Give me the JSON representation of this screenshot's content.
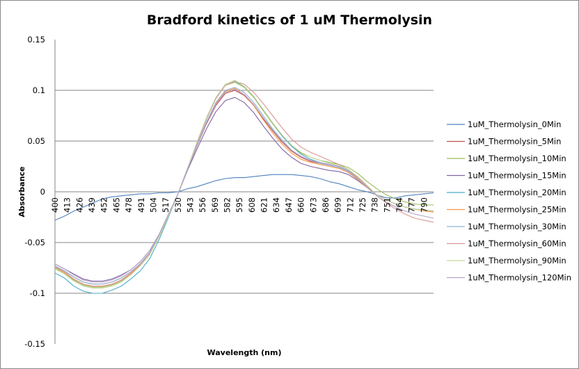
{
  "chart_data": {
    "type": "line",
    "title": "Bradford kinetics of 1 uM Thermolysin",
    "xlabel": "Wavelength (nm)",
    "ylabel": "Absorbance",
    "ylim": [
      -0.15,
      0.15
    ],
    "yticks": [
      "0.15",
      "0.1",
      "0.05",
      "0",
      "-0.05",
      "-0.1",
      "-0.15"
    ],
    "ytick_values": [
      0.15,
      0.1,
      0.05,
      0,
      -0.05,
      -0.1,
      -0.15
    ],
    "xlim": [
      400,
      800
    ],
    "xticks": [
      "400",
      "413",
      "426",
      "439",
      "452",
      "465",
      "478",
      "491",
      "504",
      "517",
      "530",
      "543",
      "556",
      "569",
      "582",
      "595",
      "608",
      "621",
      "634",
      "647",
      "660",
      "673",
      "686",
      "699",
      "712",
      "725",
      "738",
      "751",
      "764",
      "777",
      "790"
    ],
    "grid": true,
    "legend": "right",
    "x": [
      400,
      410,
      420,
      430,
      440,
      450,
      460,
      470,
      480,
      490,
      500,
      510,
      520,
      530,
      540,
      550,
      560,
      570,
      580,
      590,
      600,
      610,
      620,
      630,
      640,
      650,
      660,
      670,
      680,
      690,
      700,
      710,
      720,
      730,
      740,
      750,
      760,
      770,
      780,
      790,
      800
    ],
    "series": [
      {
        "name": "1uM_Thermolysin_0Min",
        "color": "#4F81BD",
        "values": [
          -0.028,
          -0.024,
          -0.019,
          -0.015,
          -0.011,
          -0.007,
          -0.005,
          -0.004,
          -0.003,
          -0.002,
          -0.002,
          -0.001,
          -0.001,
          0.0,
          0.003,
          0.005,
          0.008,
          0.011,
          0.013,
          0.014,
          0.014,
          0.015,
          0.016,
          0.017,
          0.017,
          0.017,
          0.016,
          0.015,
          0.013,
          0.01,
          0.008,
          0.005,
          0.002,
          0.0,
          -0.003,
          -0.006,
          -0.006,
          -0.004,
          -0.003,
          -0.002,
          -0.001
        ]
      },
      {
        "name": "1uM_Thermolysin_5Min",
        "color": "#C0504D",
        "values": [
          -0.073,
          -0.078,
          -0.084,
          -0.089,
          -0.091,
          -0.091,
          -0.089,
          -0.085,
          -0.079,
          -0.071,
          -0.06,
          -0.043,
          -0.023,
          -0.002,
          0.022,
          0.045,
          0.067,
          0.085,
          0.097,
          0.1,
          0.095,
          0.085,
          0.072,
          0.06,
          0.049,
          0.04,
          0.034,
          0.03,
          0.028,
          0.026,
          0.024,
          0.02,
          0.013,
          0.005,
          -0.003,
          -0.008,
          -0.012,
          -0.015,
          -0.017,
          -0.018,
          -0.019
        ]
      },
      {
        "name": "1uM_Thermolysin_10Min",
        "color": "#9BBB59",
        "values": [
          -0.075,
          -0.08,
          -0.087,
          -0.092,
          -0.094,
          -0.094,
          -0.092,
          -0.088,
          -0.081,
          -0.073,
          -0.062,
          -0.044,
          -0.024,
          -0.002,
          0.023,
          0.048,
          0.072,
          0.092,
          0.105,
          0.108,
          0.103,
          0.093,
          0.08,
          0.067,
          0.055,
          0.045,
          0.038,
          0.034,
          0.031,
          0.029,
          0.027,
          0.024,
          0.018,
          0.01,
          0.003,
          -0.003,
          -0.007,
          -0.01,
          -0.012,
          -0.013,
          -0.013
        ]
      },
      {
        "name": "1uM_Thermolysin_15Min",
        "color": "#8064A2",
        "values": [
          -0.071,
          -0.076,
          -0.081,
          -0.086,
          -0.088,
          -0.088,
          -0.086,
          -0.082,
          -0.077,
          -0.069,
          -0.058,
          -0.042,
          -0.022,
          -0.002,
          0.021,
          0.042,
          0.062,
          0.079,
          0.09,
          0.093,
          0.088,
          0.078,
          0.065,
          0.053,
          0.042,
          0.034,
          0.028,
          0.025,
          0.023,
          0.021,
          0.02,
          0.017,
          0.011,
          0.004,
          -0.003,
          -0.008,
          -0.012,
          -0.015,
          -0.017,
          -0.018,
          -0.019
        ]
      },
      {
        "name": "1uM_Thermolysin_20Min",
        "color": "#4BACC6",
        "values": [
          -0.08,
          -0.085,
          -0.093,
          -0.098,
          -0.1,
          -0.1,
          -0.097,
          -0.093,
          -0.086,
          -0.078,
          -0.066,
          -0.047,
          -0.025,
          -0.002,
          0.023,
          0.048,
          0.072,
          0.092,
          0.105,
          0.109,
          0.104,
          0.094,
          0.081,
          0.068,
          0.055,
          0.045,
          0.037,
          0.032,
          0.029,
          0.027,
          0.025,
          0.021,
          0.014,
          0.005,
          -0.003,
          -0.008,
          -0.012,
          -0.015,
          -0.017,
          -0.018,
          -0.019
        ]
      },
      {
        "name": "1uM_Thermolysin_25Min",
        "color": "#F79646",
        "values": [
          -0.074,
          -0.08,
          -0.086,
          -0.091,
          -0.093,
          -0.093,
          -0.091,
          -0.087,
          -0.081,
          -0.072,
          -0.061,
          -0.044,
          -0.023,
          -0.002,
          0.022,
          0.046,
          0.068,
          0.087,
          0.099,
          0.102,
          0.096,
          0.085,
          0.071,
          0.058,
          0.047,
          0.038,
          0.032,
          0.029,
          0.027,
          0.025,
          0.023,
          0.019,
          0.012,
          0.004,
          -0.003,
          -0.008,
          -0.012,
          -0.015,
          -0.017,
          -0.019,
          -0.02
        ]
      },
      {
        "name": "1uM_Thermolysin_30Min",
        "color": "#95B3D7",
        "values": [
          -0.073,
          -0.078,
          -0.084,
          -0.089,
          -0.091,
          -0.091,
          -0.089,
          -0.085,
          -0.079,
          -0.071,
          -0.06,
          -0.043,
          -0.023,
          -0.002,
          0.022,
          0.046,
          0.069,
          0.088,
          0.1,
          0.103,
          0.098,
          0.088,
          0.075,
          0.062,
          0.051,
          0.041,
          0.035,
          0.031,
          0.028,
          0.026,
          0.024,
          0.02,
          0.013,
          0.005,
          -0.003,
          -0.008,
          -0.012,
          -0.015,
          -0.017,
          -0.018,
          -0.019
        ]
      },
      {
        "name": "1uM_Thermolysin_60Min",
        "color": "#D99694",
        "values": [
          -0.074,
          -0.079,
          -0.086,
          -0.091,
          -0.093,
          -0.093,
          -0.091,
          -0.087,
          -0.08,
          -0.072,
          -0.061,
          -0.044,
          -0.023,
          -0.002,
          0.023,
          0.048,
          0.072,
          0.092,
          0.105,
          0.109,
          0.106,
          0.098,
          0.087,
          0.075,
          0.063,
          0.052,
          0.044,
          0.039,
          0.035,
          0.031,
          0.027,
          0.022,
          0.014,
          0.005,
          -0.004,
          -0.011,
          -0.017,
          -0.022,
          -0.026,
          -0.028,
          -0.03
        ]
      },
      {
        "name": "1uM_Thermolysin_90Min",
        "color": "#C3D69B",
        "values": [
          -0.076,
          -0.081,
          -0.088,
          -0.093,
          -0.095,
          -0.095,
          -0.093,
          -0.089,
          -0.082,
          -0.073,
          -0.062,
          -0.044,
          -0.024,
          -0.002,
          0.023,
          0.049,
          0.073,
          0.093,
          0.106,
          0.11,
          0.104,
          0.094,
          0.081,
          0.068,
          0.056,
          0.046,
          0.039,
          0.034,
          0.031,
          0.028,
          0.026,
          0.022,
          0.015,
          0.006,
          -0.003,
          -0.008,
          -0.012,
          -0.015,
          -0.017,
          -0.018,
          -0.019
        ]
      },
      {
        "name": "1uM_Thermolysin_120Min",
        "color": "#B3A2C7",
        "values": [
          -0.071,
          -0.076,
          -0.082,
          -0.087,
          -0.089,
          -0.089,
          -0.087,
          -0.083,
          -0.077,
          -0.069,
          -0.058,
          -0.042,
          -0.022,
          -0.002,
          0.022,
          0.045,
          0.068,
          0.086,
          0.098,
          0.101,
          0.096,
          0.086,
          0.073,
          0.061,
          0.05,
          0.041,
          0.035,
          0.031,
          0.029,
          0.027,
          0.025,
          0.021,
          0.013,
          0.004,
          -0.004,
          -0.01,
          -0.015,
          -0.019,
          -0.022,
          -0.024,
          -0.026
        ]
      }
    ]
  }
}
